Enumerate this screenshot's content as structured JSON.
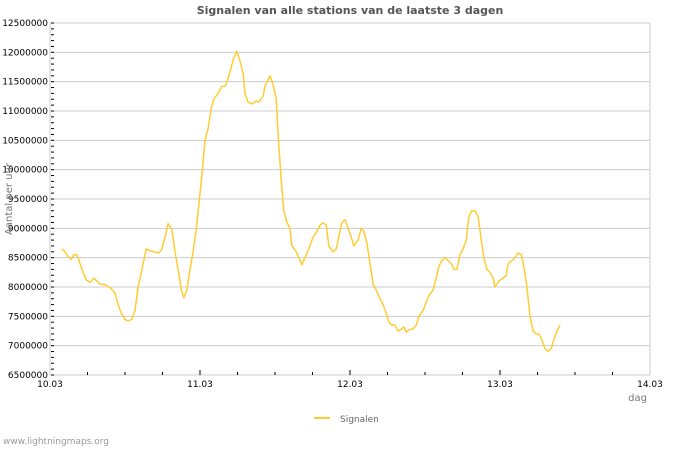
{
  "chart_data": {
    "type": "line",
    "title": "Signalen van alle stations van de laatste 3 dagen",
    "xlabel": "dag",
    "ylabel": "Aantal per uur",
    "x_units": "hours since 10.03 00:00",
    "xlim": [
      0,
      96
    ],
    "ylim": [
      6500000,
      12500000
    ],
    "ytick_step": 500000,
    "yticks": [
      "6500000",
      "7000000",
      "7500000",
      "8000000",
      "8500000",
      "9000000",
      "9500000",
      "10000000",
      "10500000",
      "11000000",
      "11500000",
      "12000000",
      "12500000"
    ],
    "xticks": [
      {
        "h": 0,
        "label": "10.03"
      },
      {
        "h": 24,
        "label": "11.03"
      },
      {
        "h": 48,
        "label": "12.03"
      },
      {
        "h": 72,
        "label": "13.03"
      },
      {
        "h": 96,
        "label": "14.03"
      }
    ],
    "grid": true,
    "legend": {
      "position": "bottom-center",
      "entries": [
        "Signalen"
      ]
    },
    "series": [
      {
        "name": "Signalen",
        "color": "#ffcc33",
        "points": [
          [
            1.9,
            8650000
          ],
          [
            2.4,
            8600000
          ],
          [
            2.9,
            8520000
          ],
          [
            3.4,
            8470000
          ],
          [
            3.8,
            8550000
          ],
          [
            4.3,
            8550000
          ],
          [
            4.8,
            8400000
          ],
          [
            5.3,
            8250000
          ],
          [
            5.8,
            8120000
          ],
          [
            6.4,
            8080000
          ],
          [
            7.0,
            8150000
          ],
          [
            7.5,
            8100000
          ],
          [
            8.0,
            8050000
          ],
          [
            8.8,
            8040000
          ],
          [
            9.6,
            7990000
          ],
          [
            10.4,
            7900000
          ],
          [
            10.9,
            7700000
          ],
          [
            11.4,
            7550000
          ],
          [
            12.0,
            7450000
          ],
          [
            12.5,
            7420000
          ],
          [
            13.1,
            7450000
          ],
          [
            13.6,
            7600000
          ],
          [
            14.1,
            8000000
          ],
          [
            14.7,
            8300000
          ],
          [
            15.4,
            8650000
          ],
          [
            16.0,
            8620000
          ],
          [
            16.6,
            8600000
          ],
          [
            17.3,
            8580000
          ],
          [
            17.8,
            8620000
          ],
          [
            18.4,
            8850000
          ],
          [
            18.9,
            9080000
          ],
          [
            19.5,
            8980000
          ],
          [
            20.0,
            8600000
          ],
          [
            20.5,
            8300000
          ],
          [
            21.0,
            7950000
          ],
          [
            21.4,
            7820000
          ],
          [
            21.9,
            7950000
          ],
          [
            22.4,
            8300000
          ],
          [
            22.9,
            8600000
          ],
          [
            23.4,
            9000000
          ],
          [
            23.8,
            9400000
          ],
          [
            24.3,
            9900000
          ],
          [
            24.8,
            10500000
          ],
          [
            25.3,
            10700000
          ],
          [
            25.8,
            11050000
          ],
          [
            26.2,
            11200000
          ],
          [
            26.9,
            11300000
          ],
          [
            27.5,
            11420000
          ],
          [
            28.0,
            11420000
          ],
          [
            28.5,
            11550000
          ],
          [
            29.0,
            11750000
          ],
          [
            29.4,
            11900000
          ],
          [
            29.9,
            12020000
          ],
          [
            30.4,
            11850000
          ],
          [
            30.9,
            11650000
          ],
          [
            31.2,
            11300000
          ],
          [
            31.7,
            11150000
          ],
          [
            32.3,
            11120000
          ],
          [
            33.0,
            11170000
          ],
          [
            33.4,
            11150000
          ],
          [
            34.1,
            11250000
          ],
          [
            34.4,
            11430000
          ],
          [
            34.9,
            11530000
          ],
          [
            35.2,
            11600000
          ],
          [
            35.7,
            11450000
          ],
          [
            36.2,
            11200000
          ],
          [
            36.5,
            10600000
          ],
          [
            37.0,
            9800000
          ],
          [
            37.4,
            9300000
          ],
          [
            37.9,
            9100000
          ],
          [
            38.4,
            9000000
          ],
          [
            38.7,
            8700000
          ],
          [
            39.4,
            8600000
          ],
          [
            39.8,
            8500000
          ],
          [
            40.3,
            8380000
          ],
          [
            40.8,
            8500000
          ],
          [
            41.4,
            8650000
          ],
          [
            42.1,
            8850000
          ],
          [
            42.7,
            8950000
          ],
          [
            43.2,
            9050000
          ],
          [
            43.7,
            9100000
          ],
          [
            44.2,
            9050000
          ],
          [
            44.6,
            8700000
          ],
          [
            45.3,
            8600000
          ],
          [
            45.8,
            8650000
          ],
          [
            46.2,
            8850000
          ],
          [
            46.7,
            9100000
          ],
          [
            47.2,
            9150000
          ],
          [
            47.7,
            9000000
          ],
          [
            48.2,
            8850000
          ],
          [
            48.6,
            8700000
          ],
          [
            49.3,
            8800000
          ],
          [
            49.8,
            9000000
          ],
          [
            50.2,
            8950000
          ],
          [
            50.7,
            8750000
          ],
          [
            51.2,
            8400000
          ],
          [
            51.7,
            8050000
          ],
          [
            52.2,
            7950000
          ],
          [
            52.8,
            7800000
          ],
          [
            53.3,
            7700000
          ],
          [
            53.8,
            7550000
          ],
          [
            54.2,
            7400000
          ],
          [
            54.7,
            7350000
          ],
          [
            55.2,
            7350000
          ],
          [
            55.7,
            7250000
          ],
          [
            56.2,
            7280000
          ],
          [
            56.6,
            7320000
          ],
          [
            57.0,
            7230000
          ],
          [
            57.4,
            7270000
          ],
          [
            58.1,
            7290000
          ],
          [
            58.6,
            7350000
          ],
          [
            59.0,
            7500000
          ],
          [
            59.7,
            7600000
          ],
          [
            60.2,
            7750000
          ],
          [
            60.6,
            7850000
          ],
          [
            61.3,
            7950000
          ],
          [
            61.8,
            8150000
          ],
          [
            62.2,
            8350000
          ],
          [
            62.7,
            8450000
          ],
          [
            63.2,
            8500000
          ],
          [
            63.7,
            8450000
          ],
          [
            64.2,
            8400000
          ],
          [
            64.6,
            8300000
          ],
          [
            65.1,
            8300000
          ],
          [
            65.6,
            8550000
          ],
          [
            66.1,
            8650000
          ],
          [
            66.6,
            8800000
          ],
          [
            67.0,
            9200000
          ],
          [
            67.5,
            9300000
          ],
          [
            68.0,
            9300000
          ],
          [
            68.5,
            9200000
          ],
          [
            69.0,
            8800000
          ],
          [
            69.4,
            8500000
          ],
          [
            69.9,
            8300000
          ],
          [
            70.4,
            8250000
          ],
          [
            70.9,
            8150000
          ],
          [
            71.2,
            8000000
          ],
          [
            71.8,
            8100000
          ],
          [
            72.5,
            8150000
          ],
          [
            73.0,
            8200000
          ],
          [
            73.3,
            8400000
          ],
          [
            73.9,
            8450000
          ],
          [
            74.4,
            8500000
          ],
          [
            74.9,
            8580000
          ],
          [
            75.4,
            8550000
          ],
          [
            75.8,
            8350000
          ],
          [
            76.3,
            8000000
          ],
          [
            76.8,
            7500000
          ],
          [
            77.3,
            7250000
          ],
          [
            77.8,
            7200000
          ],
          [
            78.2,
            7200000
          ],
          [
            78.7,
            7100000
          ],
          [
            79.2,
            6950000
          ],
          [
            79.7,
            6900000
          ],
          [
            80.2,
            6950000
          ],
          [
            80.6,
            7100000
          ],
          [
            81.1,
            7250000
          ],
          [
            81.6,
            7350000
          ]
        ]
      }
    ]
  },
  "footer": "www.lightningmaps.org"
}
